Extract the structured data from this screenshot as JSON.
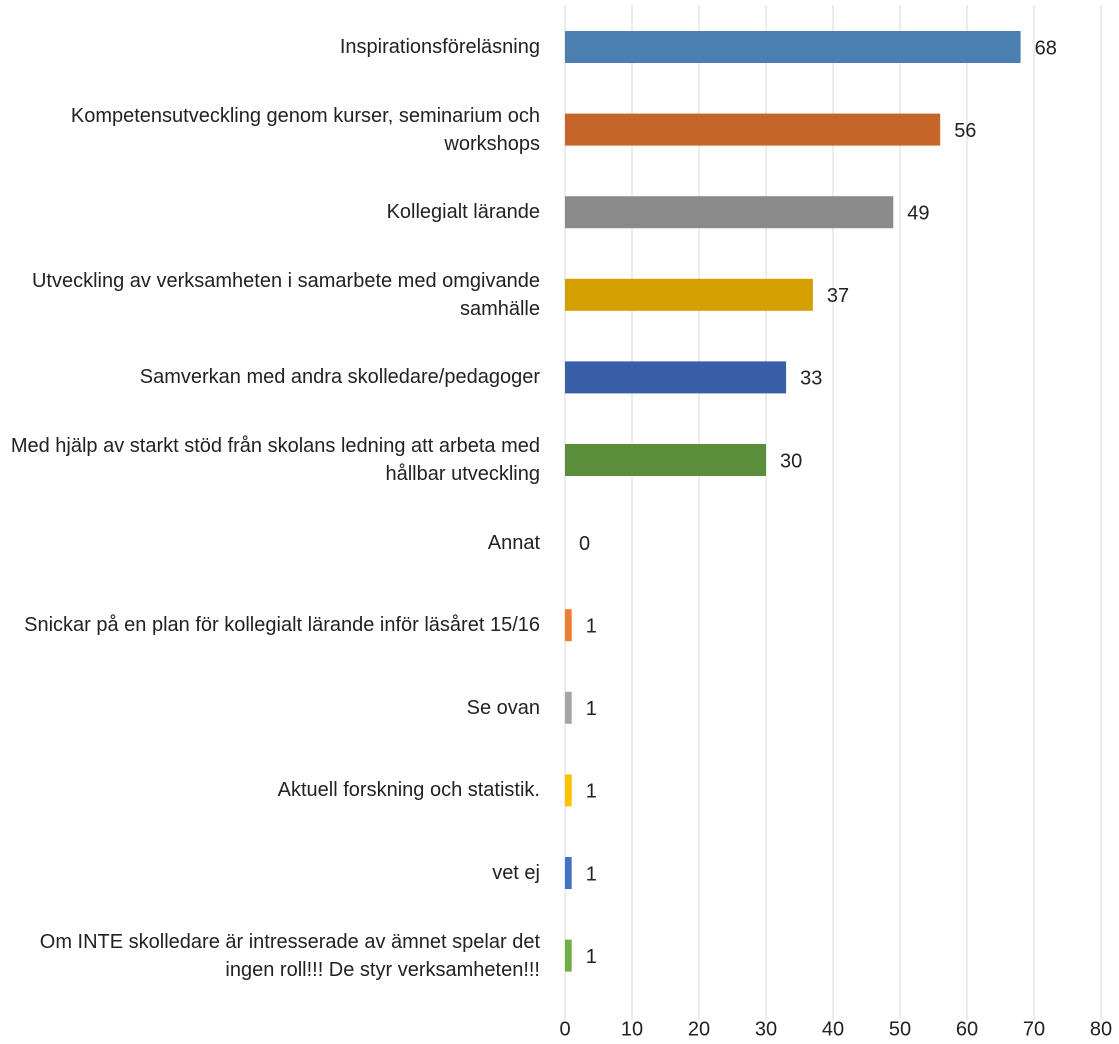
{
  "chart_data": {
    "type": "bar",
    "orientation": "horizontal",
    "categories": [
      "Inspirationsföreläsning",
      "Kompetensutveckling genom kurser, seminarium och workshops",
      "Kollegialt lärande",
      "Utveckling av verksamheten i samarbete med omgivande samhälle",
      "Samverkan med andra skolledare/pedagoger",
      "Med hjälp av starkt stöd från skolans ledning att arbeta med hållbar utveckling",
      "Annat",
      "Snickar på en plan för kollegialt lärande inför läsåret 15/16",
      "Se ovan",
      "Aktuell forskning och statistik.",
      "vet ej",
      "Om INTE skolledare är intresserade av ämnet spelar det ingen roll!!! De styr verksamheten!!!"
    ],
    "values": [
      68,
      56,
      49,
      37,
      33,
      30,
      0,
      1,
      1,
      1,
      1,
      1
    ],
    "colors": [
      "#4a7fb0",
      "#c5652a",
      "#8a8a8a",
      "#d4a000",
      "#3a5ea8",
      "#5a8e3a",
      "#5b9bd5",
      "#ed7d31",
      "#a5a5a5",
      "#ffc000",
      "#4472c4",
      "#70ad47"
    ],
    "xlim": [
      0,
      80
    ],
    "xticks": [
      0,
      10,
      20,
      30,
      40,
      50,
      60,
      70,
      80
    ],
    "grid": true
  }
}
